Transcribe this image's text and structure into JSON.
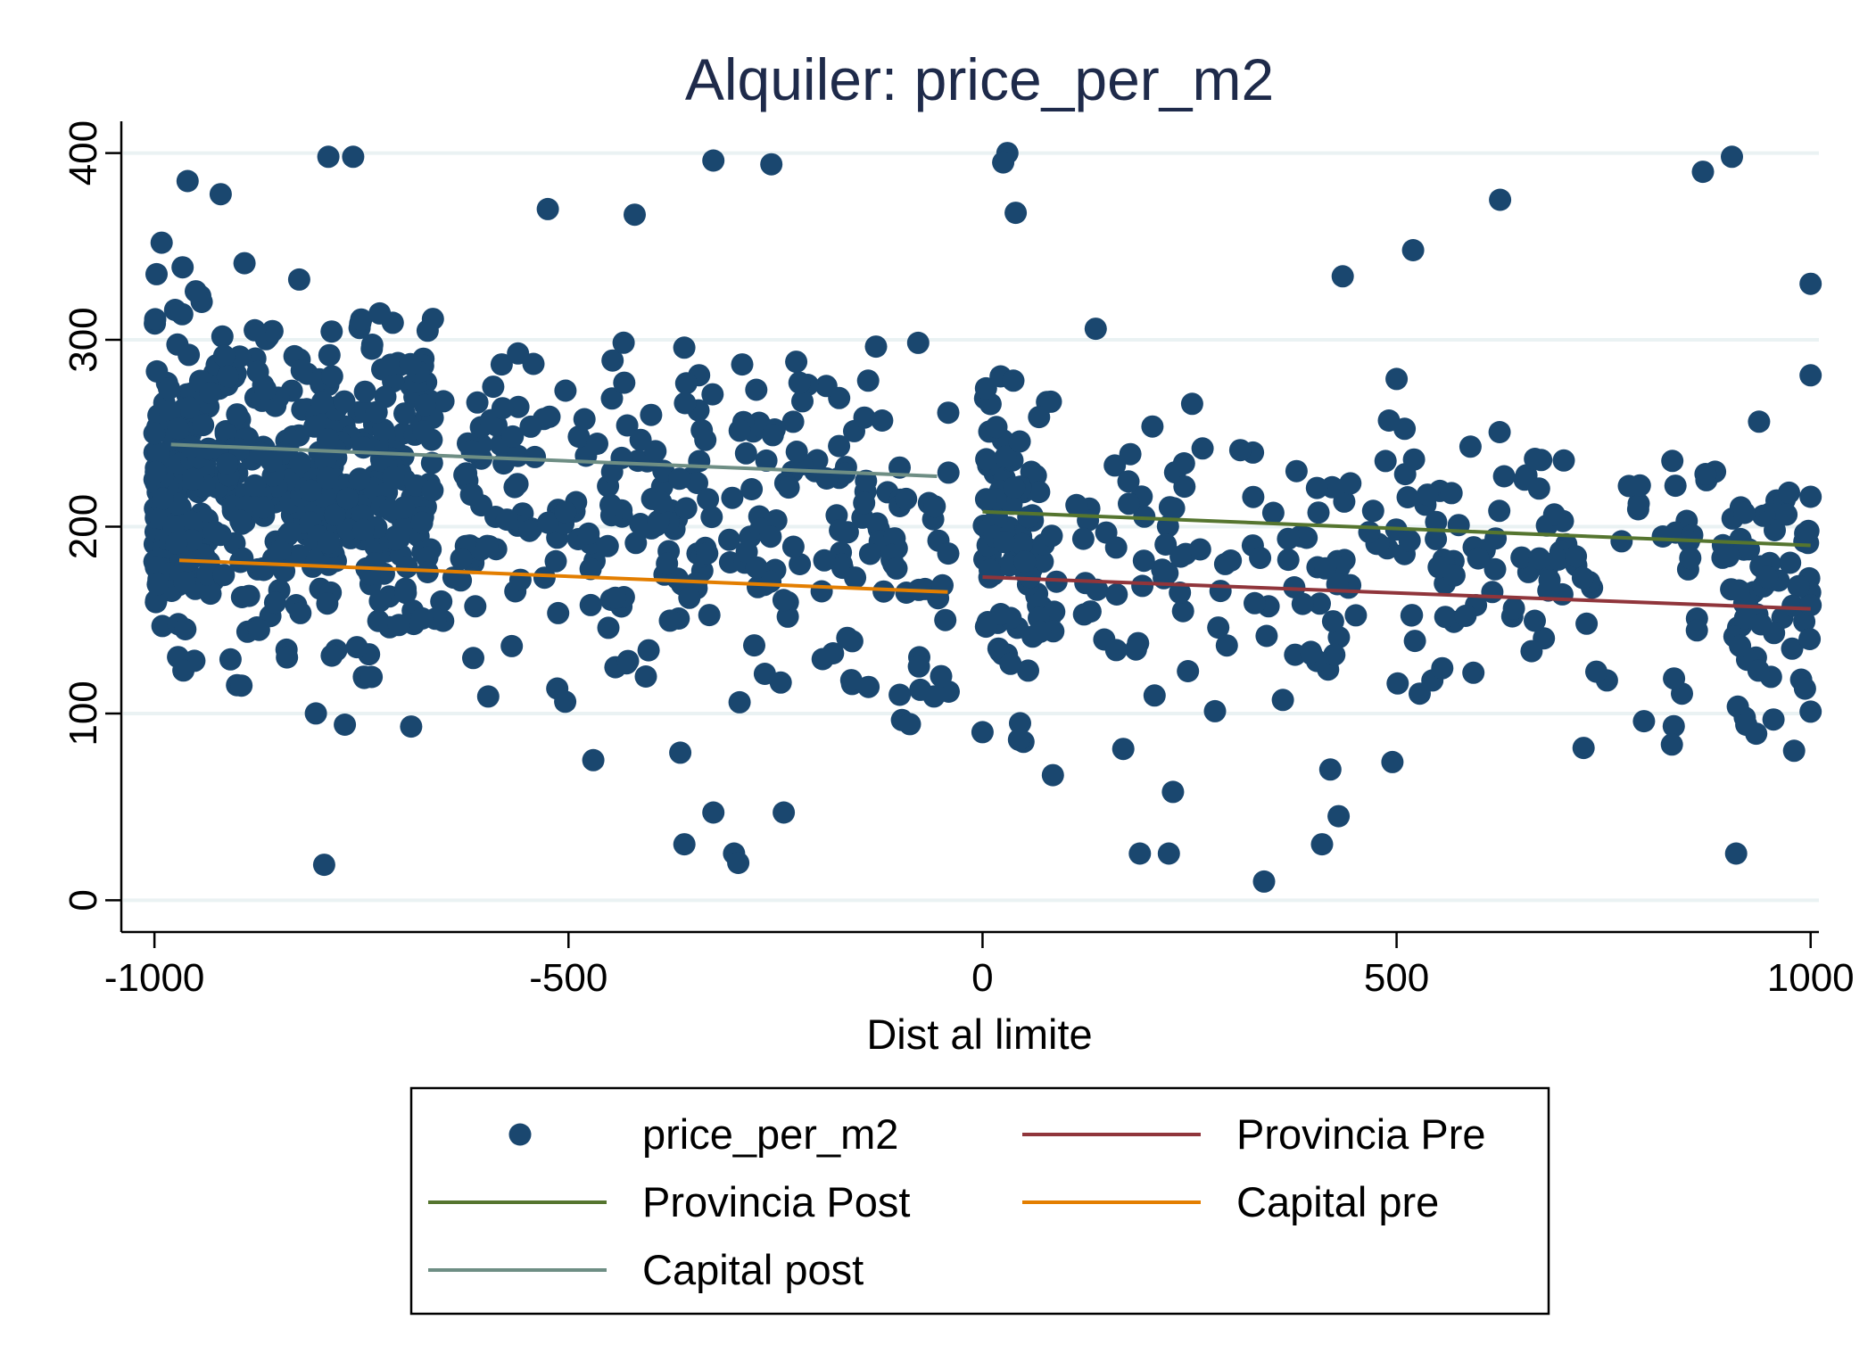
{
  "colors": {
    "points": "#1a476f",
    "provincia_post": "#55752f",
    "provincia_pre": "#90353b",
    "capital_pre": "#e37e00",
    "capital_post": "#6e8e84",
    "grid": "#eaf2f3",
    "axis": "#000000",
    "title": "#1e2a4a"
  },
  "chart_data": {
    "type": "scatter",
    "title": "Alquiler: price_per_m2",
    "xlabel": "Dist al limite",
    "ylabel": "",
    "xlim": [
      -1040,
      1010
    ],
    "ylim": [
      -17,
      417
    ],
    "x_ticks": [
      -1000,
      -500,
      0,
      500,
      1000
    ],
    "x_tick_labels": [
      "-1000",
      "-500",
      "0",
      "500",
      "1000"
    ],
    "y_ticks": [
      0,
      100,
      200,
      300,
      400
    ],
    "y_tick_labels": [
      "0",
      "100",
      "200",
      "300",
      "400"
    ],
    "grid": "horizontal",
    "legend_position": "bottom",
    "series": [
      {
        "name": "price_per_m2",
        "kind": "points",
        "color_key": "points",
        "generated": {
          "n_left": 760,
          "n_right": 360,
          "seed": 7
        }
      },
      {
        "name": "Provincia Pre",
        "kind": "line",
        "color_key": "provincia_pre",
        "x": [
          0,
          1000
        ],
        "y": [
          173,
          156
        ]
      },
      {
        "name": "Provincia Post",
        "kind": "line",
        "color_key": "provincia_post",
        "x": [
          0,
          1000
        ],
        "y": [
          208,
          190
        ]
      },
      {
        "name": "Capital pre",
        "kind": "line",
        "color_key": "capital_pre",
        "x": [
          -970,
          -42
        ],
        "y": [
          182,
          165
        ]
      },
      {
        "name": "Capital post",
        "kind": "line",
        "color_key": "capital_post",
        "x": [
          -980,
          -55
        ],
        "y": [
          244,
          227
        ]
      }
    ],
    "legend": [
      {
        "label": "price_per_m2",
        "kind": "marker",
        "color_key": "points"
      },
      {
        "label": "Provincia Pre",
        "kind": "line",
        "color_key": "provincia_pre"
      },
      {
        "label": "Provincia Post",
        "kind": "line",
        "color_key": "provincia_post"
      },
      {
        "label": "Capital pre",
        "kind": "line",
        "color_key": "capital_pre"
      },
      {
        "label": "Capital post",
        "kind": "line",
        "color_key": "capital_post"
      }
    ],
    "notable_points": [
      [
        -1000,
        250
      ],
      [
        -990,
        215
      ],
      [
        -975,
        316
      ],
      [
        -960,
        385
      ],
      [
        -965,
        123
      ],
      [
        -950,
        326
      ],
      [
        -920,
        378
      ],
      [
        -840,
        130
      ],
      [
        -805,
        100
      ],
      [
        -795,
        19
      ],
      [
        -770,
        94
      ],
      [
        -790,
        398
      ],
      [
        -760,
        398
      ],
      [
        -690,
        93
      ],
      [
        -470,
        75
      ],
      [
        -365,
        79
      ],
      [
        -360,
        30
      ],
      [
        -325,
        47
      ],
      [
        -300,
        25
      ],
      [
        -295,
        20
      ],
      [
        -240,
        47
      ],
      [
        -325,
        396
      ],
      [
        -255,
        394
      ],
      [
        -420,
        367
      ],
      [
        -525,
        370
      ],
      [
        -100,
        110
      ],
      [
        -50,
        120
      ],
      [
        -45,
        150
      ],
      [
        0,
        90
      ],
      [
        30,
        400
      ],
      [
        25,
        395
      ],
      [
        40,
        368
      ],
      [
        85,
        67
      ],
      [
        170,
        81
      ],
      [
        190,
        25
      ],
      [
        225,
        25
      ],
      [
        230,
        58
      ],
      [
        340,
        10
      ],
      [
        410,
        30
      ],
      [
        420,
        70
      ],
      [
        430,
        45
      ],
      [
        435,
        334
      ],
      [
        495,
        74
      ],
      [
        520,
        348
      ],
      [
        625,
        375
      ],
      [
        870,
        390
      ],
      [
        905,
        398
      ],
      [
        910,
        25
      ],
      [
        980,
        80
      ],
      [
        1000,
        330
      ],
      [
        1000,
        281
      ],
      [
        1000,
        216
      ],
      [
        1000,
        158
      ],
      [
        1000,
        101
      ]
    ]
  }
}
